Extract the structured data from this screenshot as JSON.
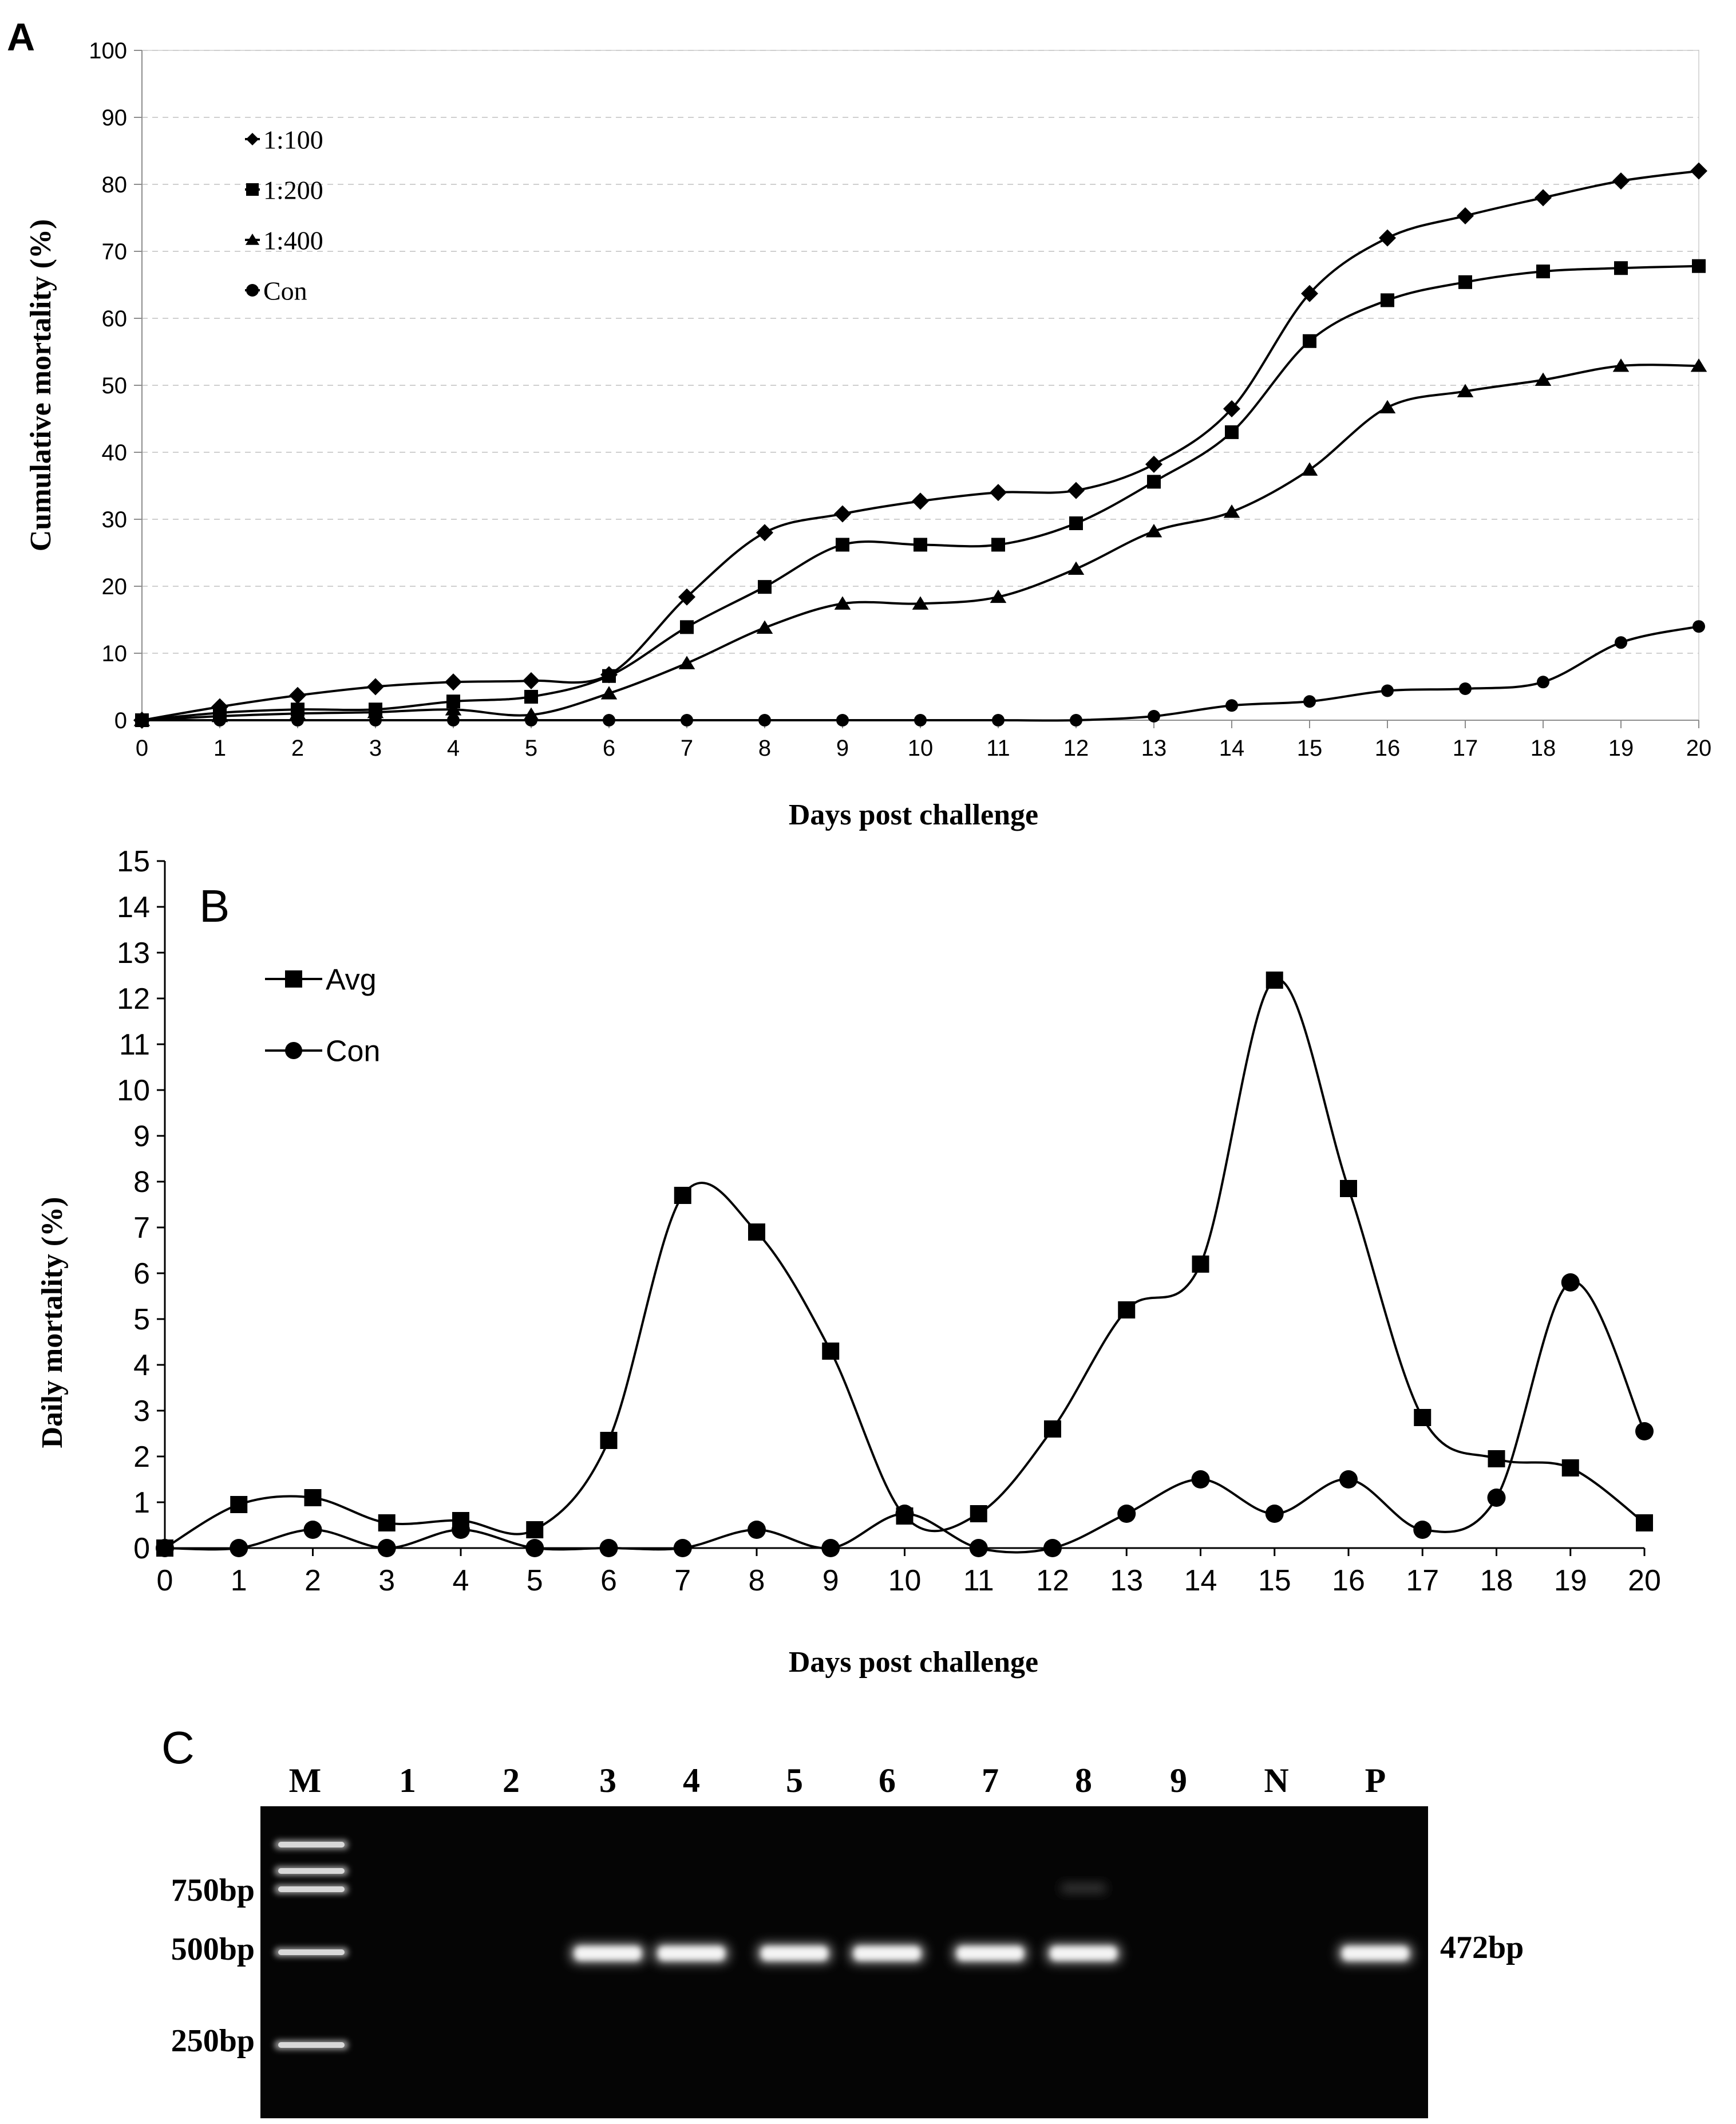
{
  "chart_data": [
    {
      "panel": "A",
      "type": "line",
      "xlabel": "Days post challenge",
      "ylabel": "Cumulative mortality (%)",
      "xlim": [
        0,
        20
      ],
      "ylim": [
        0,
        100
      ],
      "y_ticks": [
        0,
        10,
        20,
        30,
        40,
        50,
        60,
        70,
        80,
        90,
        100
      ],
      "grid": true,
      "legend_position": "top-left",
      "x": [
        0,
        1,
        2,
        3,
        4,
        5,
        6,
        7,
        8,
        9,
        10,
        11,
        12,
        13,
        14,
        15,
        16,
        17,
        18,
        19,
        20
      ],
      "series": [
        {
          "name": "1:100",
          "marker": "diamond",
          "values": [
            0,
            2,
            3.7,
            5,
            5.7,
            5.9,
            6.8,
            18.4,
            28,
            30.8,
            32.7,
            34,
            34.3,
            38.2,
            46.5,
            63.7,
            72,
            75.3,
            78,
            80.5,
            82
          ]
        },
        {
          "name": "1:200",
          "marker": "square",
          "values": [
            0,
            1.1,
            1.6,
            1.6,
            2.8,
            3.5,
            6.6,
            13.9,
            19.9,
            26.2,
            26.2,
            26.2,
            29.4,
            35.6,
            43,
            56.6,
            62.7,
            65.4,
            67,
            67.5,
            67.8
          ]
        },
        {
          "name": "1:400",
          "marker": "triangle",
          "values": [
            0,
            0.6,
            1,
            1.2,
            1.6,
            0.8,
            4,
            8.5,
            13.8,
            17.4,
            17.4,
            18.4,
            22.6,
            28.2,
            31.1,
            37.4,
            46.7,
            49.1,
            50.8,
            52.9,
            52.9
          ]
        },
        {
          "name": "Con",
          "marker": "circle",
          "values": [
            0,
            0,
            0,
            0,
            0,
            0,
            0,
            0,
            0,
            0,
            0,
            0,
            0,
            0.6,
            2.2,
            2.8,
            4.4,
            4.7,
            5.7,
            11.6,
            14
          ]
        }
      ]
    },
    {
      "panel": "B",
      "type": "line",
      "xlabel": "Days post challenge",
      "ylabel": "Daily mortality (%)",
      "xlim": [
        0,
        20
      ],
      "ylim": [
        0,
        15
      ],
      "y_ticks": [
        0,
        1,
        2,
        3,
        4,
        5,
        6,
        7,
        8,
        9,
        10,
        11,
        12,
        13,
        14,
        15
      ],
      "grid": false,
      "legend_position": "top-left",
      "x": [
        0,
        1,
        2,
        3,
        4,
        5,
        6,
        7,
        8,
        9,
        10,
        11,
        12,
        13,
        14,
        15,
        16,
        17,
        18,
        19,
        20
      ],
      "series": [
        {
          "name": "Avg",
          "marker": "square",
          "values": [
            0,
            0.95,
            1.1,
            0.55,
            0.6,
            0.4,
            2.35,
            7.7,
            6.9,
            4.3,
            0.7,
            0.75,
            2.6,
            5.2,
            6.2,
            12.4,
            7.85,
            2.85,
            1.95,
            1.75,
            0.55
          ]
        },
        {
          "name": "Con",
          "marker": "circle",
          "values": [
            0,
            0,
            0.4,
            0,
            0.4,
            0,
            0,
            0,
            0.4,
            0,
            0.75,
            0,
            0,
            0.75,
            1.5,
            0.75,
            1.5,
            0.4,
            1.1,
            5.8,
            2.55
          ]
        }
      ]
    }
  ],
  "panel_labels": {
    "a": "A",
    "b": "B",
    "c": "C"
  },
  "gel": {
    "lanes": [
      "M",
      "1",
      "2",
      "3",
      "4",
      "5",
      "6",
      "7",
      "8",
      "9",
      "N",
      "P"
    ],
    "marker_labels": [
      "750bp",
      "500bp",
      "250bp"
    ],
    "product_label": "472bp",
    "band_presence": [
      false,
      false,
      true,
      true,
      true,
      true,
      true,
      true,
      false,
      false,
      true
    ]
  }
}
